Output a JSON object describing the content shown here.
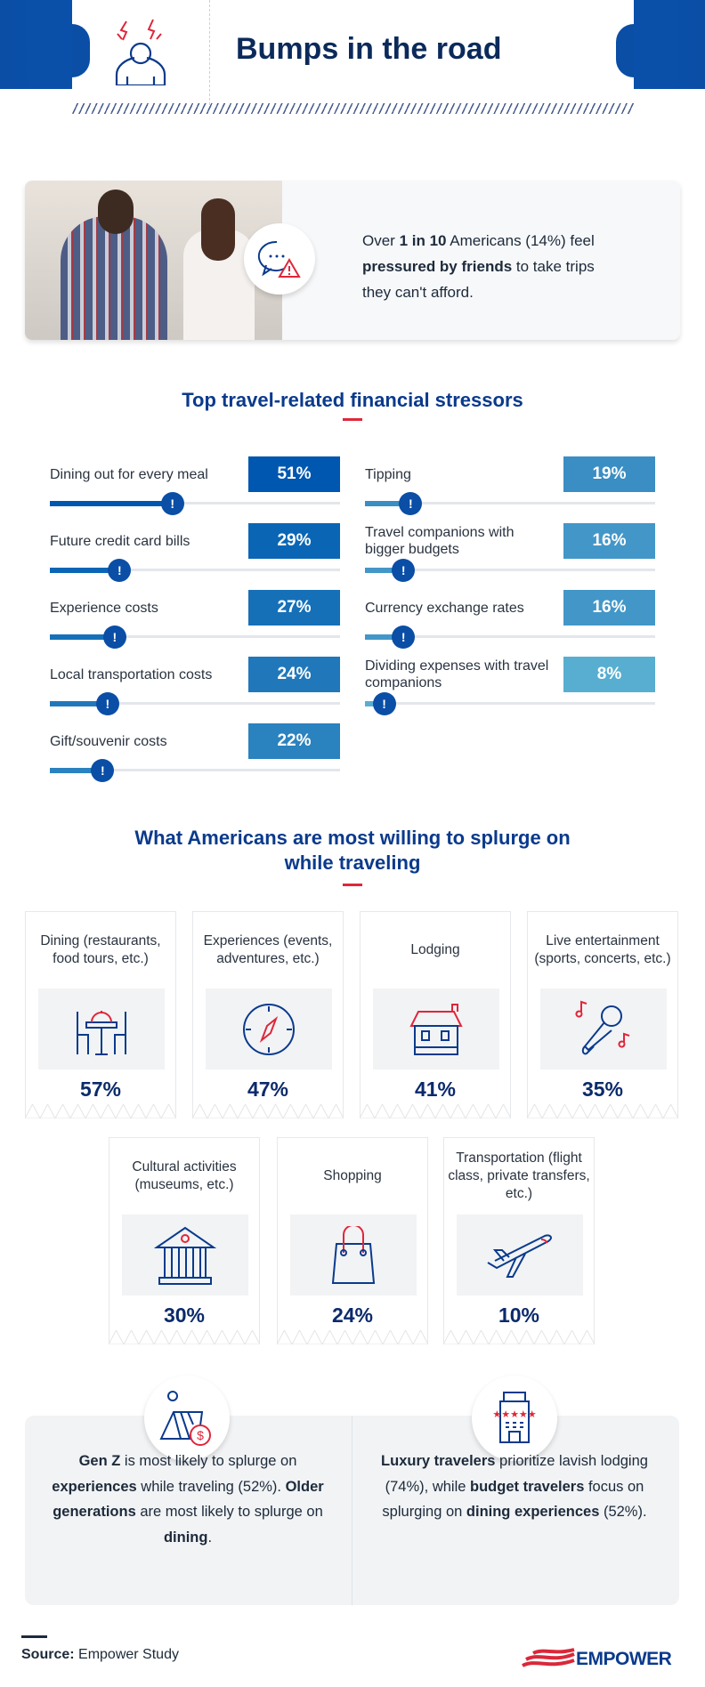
{
  "header": {
    "title": "Bumps in the road",
    "icon": "stressed-person-icon"
  },
  "intro": {
    "icon": "chat-warning-icon",
    "line1_pre": "Over ",
    "line1_bold": "1 in 10",
    "line1_post": " Americans (14%) feel",
    "line2_bold": "pressured by friends",
    "line2_post": " to take trips",
    "line3": "they can't afford."
  },
  "stressors": {
    "title": "Top travel-related financial stressors",
    "items": [
      {
        "label": "Dining out for every meal",
        "value": 51,
        "text": "51%",
        "color": "#0057b0"
      },
      {
        "label": "Future credit card bills",
        "value": 29,
        "text": "29%",
        "color": "#0a66b5"
      },
      {
        "label": "Experience costs",
        "value": 27,
        "text": "27%",
        "color": "#1670b8"
      },
      {
        "label": "Local transportation costs",
        "value": 24,
        "text": "24%",
        "color": "#2078bb"
      },
      {
        "label": "Gift/souvenir costs",
        "value": 22,
        "text": "22%",
        "color": "#2a82bf"
      },
      {
        "label": "Tipping",
        "value": 19,
        "text": "19%",
        "color": "#3a8ec3"
      },
      {
        "label": "Travel companions with bigger budgets",
        "value": 16,
        "text": "16%",
        "color": "#4397c8"
      },
      {
        "label": "Currency exchange rates",
        "value": 16,
        "text": "16%",
        "color": "#4397c8"
      },
      {
        "label": "Dividing expenses with travel companions",
        "value": 8,
        "text": "8%",
        "color": "#58aed0"
      }
    ]
  },
  "splurge": {
    "title_line1": "What Americans are most willing to splurge on",
    "title_line2": "while traveling",
    "items": [
      {
        "label": "Dining (restaurants, food tours, etc.)",
        "text": "57%",
        "icon": "dining-table-icon"
      },
      {
        "label": "Experiences (events, adventures, etc.)",
        "text": "47%",
        "icon": "compass-icon"
      },
      {
        "label": "Lodging",
        "text": "41%",
        "icon": "house-icon"
      },
      {
        "label": "Live entertainment (sports, concerts, etc.)",
        "text": "35%",
        "icon": "microphone-icon"
      },
      {
        "label": "Cultural activities (museums, etc.)",
        "text": "30%",
        "icon": "museum-icon"
      },
      {
        "label": "Shopping",
        "text": "24%",
        "icon": "shopping-bag-icon"
      },
      {
        "label": "Transportation (flight class, private transfers, etc.)",
        "text": "10%",
        "icon": "airplane-icon"
      }
    ]
  },
  "insights": {
    "left": {
      "icon": "tent-money-icon",
      "b1": "Gen Z",
      "t1": " is most likely to splurge on ",
      "b2": "experiences",
      "t2": " while traveling (52%). ",
      "b3": "Older generations",
      "t3": " are most likely to splurge on ",
      "b4": "dining",
      "t4": "."
    },
    "right": {
      "icon": "five-star-hotel-icon",
      "b1": "Luxury travelers",
      "t1": " prioritize lavish lodging (74%), while ",
      "b2": "budget travelers",
      "t2": " focus on splurging on ",
      "b3": "dining experiences",
      "t3": " (52%)."
    }
  },
  "footer": {
    "source_label": "Source:",
    "source_text": " Empower Study",
    "logo_text": "EMPOWER"
  },
  "colors": {
    "navy": "#0b2a5b",
    "blue": "#0a4ea6",
    "red": "#e0263a",
    "panel": "#f1f3f5"
  }
}
